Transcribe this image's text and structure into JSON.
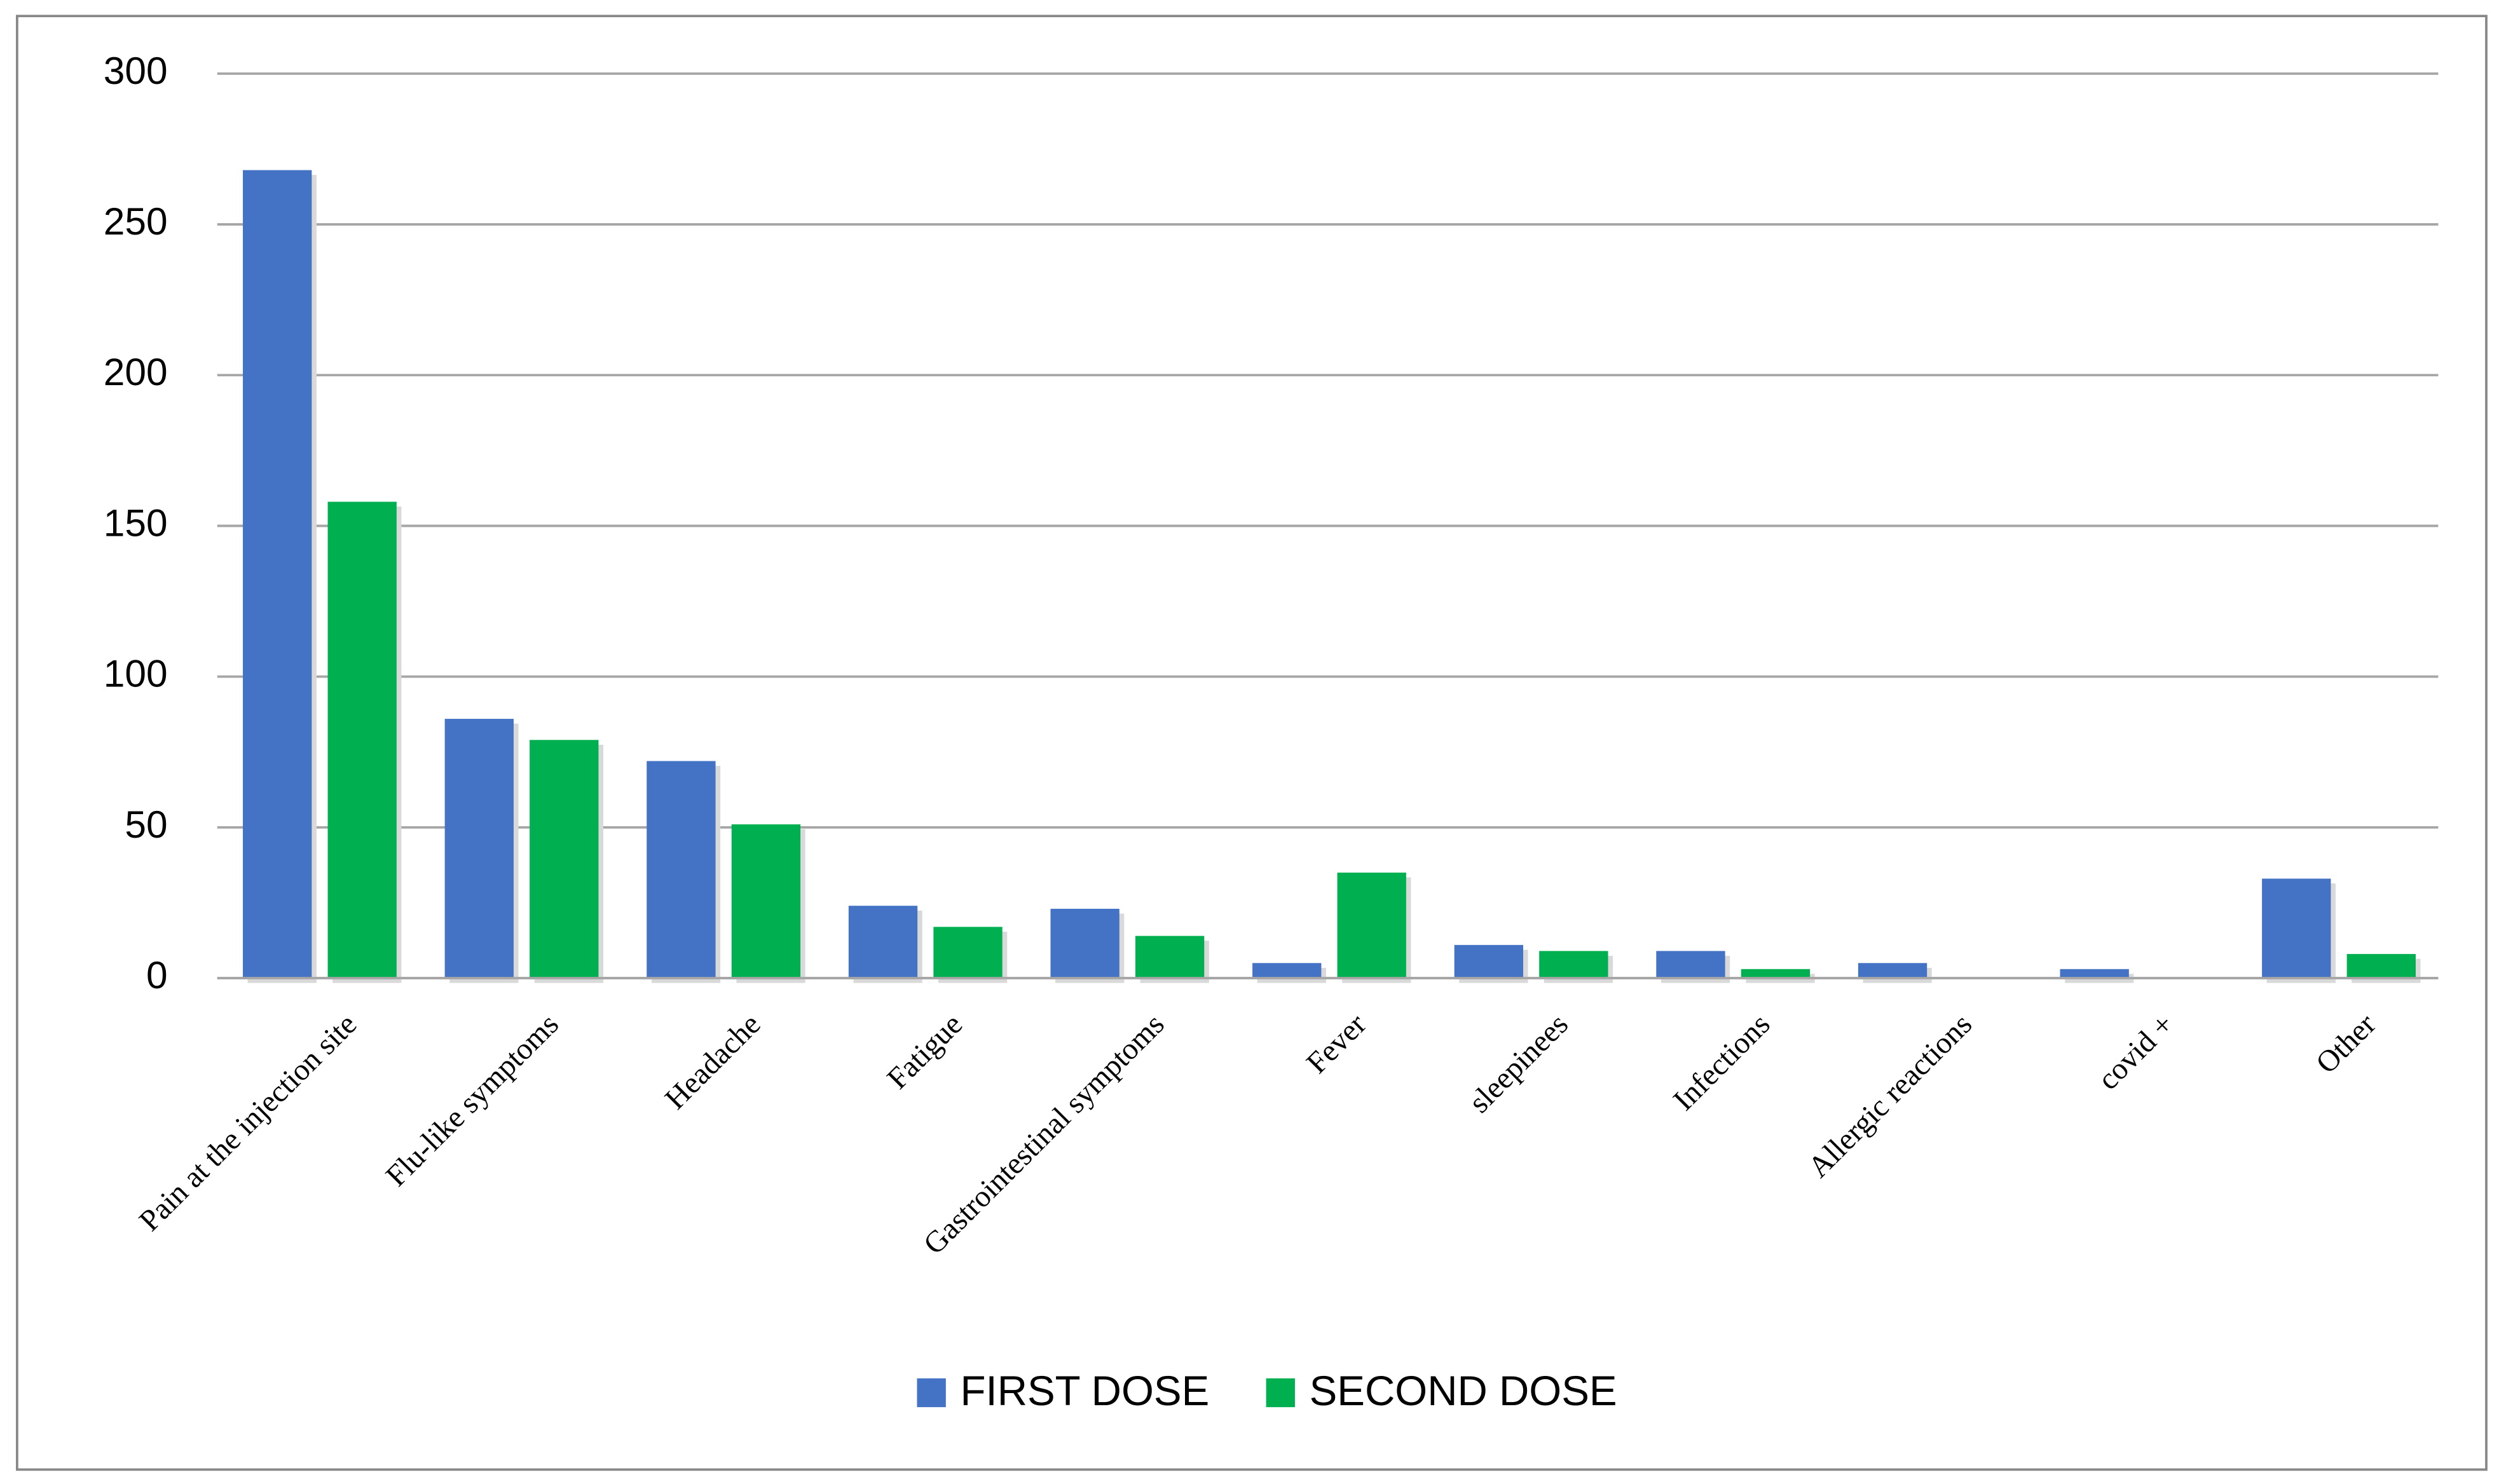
{
  "chart_data": {
    "type": "bar",
    "categories": [
      "Pain at the injection site",
      "Flu-like symptoms",
      "Headache",
      "Fatigue",
      "Gastrointestinal symptoms",
      "Fever",
      "sleepinees",
      "Infections",
      "Allergic reactions",
      "covid +",
      "Other"
    ],
    "series": [
      {
        "name": "FIRST DOSE",
        "color": "#4472c4",
        "values": [
          268,
          86,
          72,
          24,
          23,
          5,
          11,
          9,
          5,
          3,
          33
        ]
      },
      {
        "name": "SECOND DOSE",
        "color": "#00b050",
        "values": [
          158,
          79,
          51,
          17,
          14,
          35,
          9,
          3,
          0,
          0,
          8
        ]
      }
    ],
    "ylim": [
      0,
      300
    ],
    "yticks": [
      0,
      50,
      100,
      150,
      200,
      250,
      300
    ],
    "grid": true,
    "legend": "bottom"
  }
}
